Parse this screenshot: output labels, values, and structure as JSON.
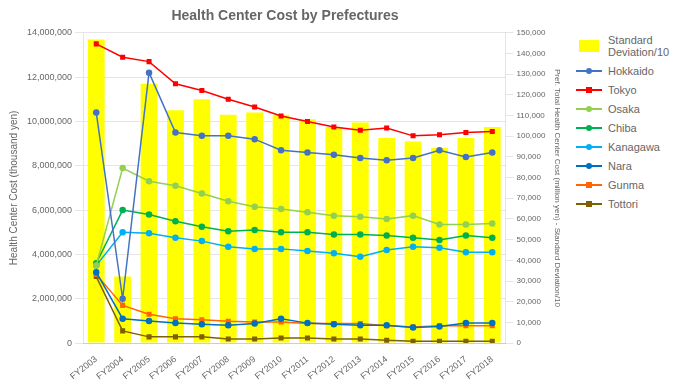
{
  "chart_data": {
    "type": "bar",
    "title": "Health Center Cost by Prefectures",
    "categories": [
      "FY2003",
      "FY2004",
      "FY2005",
      "FY2006",
      "FY2007",
      "FY2008",
      "FY2009",
      "FY2010",
      "FY2011",
      "FY2012",
      "FY2013",
      "FY2014",
      "FY2015",
      "FY2016",
      "FY2017",
      "FY2018"
    ],
    "ylabel": "Health Center Cost (thousand yen)",
    "y2label": "Pref. Total Health Center Cost (million yen) - Standard Deviation/10",
    "series": [
      {
        "name": "Standard\nDeviation/10",
        "type": "bar",
        "color": "#FFFF00",
        "values": [
          13700000,
          3000000,
          11700000,
          10500000,
          11000000,
          10300000,
          10400000,
          10300000,
          10100000,
          9750000,
          9950000,
          9250000,
          9100000,
          8800000,
          9250000,
          9750000
        ]
      },
      {
        "name": "Hokkaido",
        "type": "line",
        "color": "#4472C4",
        "marker": "circle",
        "values": [
          10400000,
          2000000,
          12200000,
          9500000,
          9350000,
          9350000,
          9200000,
          8700000,
          8600000,
          8500000,
          8350000,
          8250000,
          8350000,
          8700000,
          8400000,
          8600000
        ]
      },
      {
        "name": "Tokyo",
        "type": "line",
        "color": "#FF0000",
        "marker": "square",
        "values": [
          13500000,
          12900000,
          12700000,
          11700000,
          11400000,
          11000000,
          10650000,
          10250000,
          10000000,
          9750000,
          9600000,
          9700000,
          9350000,
          9400000,
          9500000,
          9550000
        ]
      },
      {
        "name": "Osaka",
        "type": "line",
        "color": "#92D050",
        "marker": "circle",
        "values": [
          3500000,
          7900000,
          7300000,
          7100000,
          6750000,
          6400000,
          6150000,
          6050000,
          5900000,
          5750000,
          5700000,
          5600000,
          5750000,
          5350000,
          5350000,
          5400000
        ]
      },
      {
        "name": "Chiba",
        "type": "line",
        "color": "#00B050",
        "marker": "circle",
        "values": [
          3600000,
          6000000,
          5800000,
          5500000,
          5250000,
          5050000,
          5100000,
          5000000,
          5000000,
          4900000,
          4900000,
          4850000,
          4750000,
          4650000,
          4850000,
          4750000
        ]
      },
      {
        "name": "Kanagawa",
        "type": "line",
        "color": "#00B0F0",
        "marker": "circle",
        "values": [
          3500000,
          5000000,
          4950000,
          4750000,
          4600000,
          4350000,
          4250000,
          4250000,
          4150000,
          4050000,
          3900000,
          4200000,
          4350000,
          4300000,
          4100000,
          4100000
        ]
      },
      {
        "name": "Nara",
        "type": "line",
        "color": "#0070C0",
        "marker": "circle",
        "values": [
          3200000,
          1100000,
          1000000,
          900000,
          850000,
          800000,
          880000,
          1100000,
          900000,
          850000,
          800000,
          800000,
          700000,
          750000,
          900000,
          900000
        ]
      },
      {
        "name": "Gunma",
        "type": "line",
        "color": "#FF6600",
        "marker": "square",
        "values": [
          3100000,
          1700000,
          1300000,
          1100000,
          1050000,
          980000,
          950000,
          950000,
          880000,
          880000,
          880000,
          780000,
          730000,
          780000,
          780000,
          780000
        ]
      },
      {
        "name": "Tottori",
        "type": "line",
        "color": "#7F6000",
        "marker": "square",
        "values": [
          3000000,
          550000,
          280000,
          280000,
          280000,
          180000,
          180000,
          230000,
          230000,
          180000,
          180000,
          130000,
          80000,
          80000,
          80000,
          80000
        ]
      }
    ],
    "ylim": [
      0,
      14000000
    ],
    "yticks": [
      0,
      {
        "value": 2000000,
        "label": "2,000,000"
      },
      {
        "value": 4000000,
        "label": "4,000,000"
      },
      {
        "value": 6000000,
        "label": "6,000,000"
      },
      {
        "value": 8000000,
        "label": "8,000,000"
      },
      {
        "value": 10000000,
        "label": "10,000,000"
      },
      {
        "value": 12000000,
        "label": "12,000,000"
      },
      {
        "value": 14000000,
        "label": "14,000,000"
      }
    ],
    "y2lim": [
      0,
      150000
    ],
    "y2ticks": [
      0,
      {
        "value": 10000,
        "label": "10,000"
      },
      {
        "value": 20000,
        "label": "20,000"
      },
      {
        "value": 30000,
        "label": "30,000"
      },
      {
        "value": 40000,
        "label": "40,000"
      },
      {
        "value": 50000,
        "label": "50,000"
      },
      {
        "value": 60000,
        "label": "60,000"
      },
      {
        "value": 70000,
        "label": "70,000"
      },
      {
        "value": 80000,
        "label": "80,000"
      },
      {
        "value": 90000,
        "label": "90,000"
      },
      {
        "value": 100000,
        "label": "100,000"
      },
      {
        "value": 110000,
        "label": "110,000"
      },
      {
        "value": 120000,
        "label": "120,000"
      },
      {
        "value": 130000,
        "label": "130,000"
      },
      {
        "value": 140000,
        "label": "140,000"
      },
      {
        "value": 150000,
        "label": "150,000"
      }
    ],
    "grid": true,
    "legend": "right"
  }
}
